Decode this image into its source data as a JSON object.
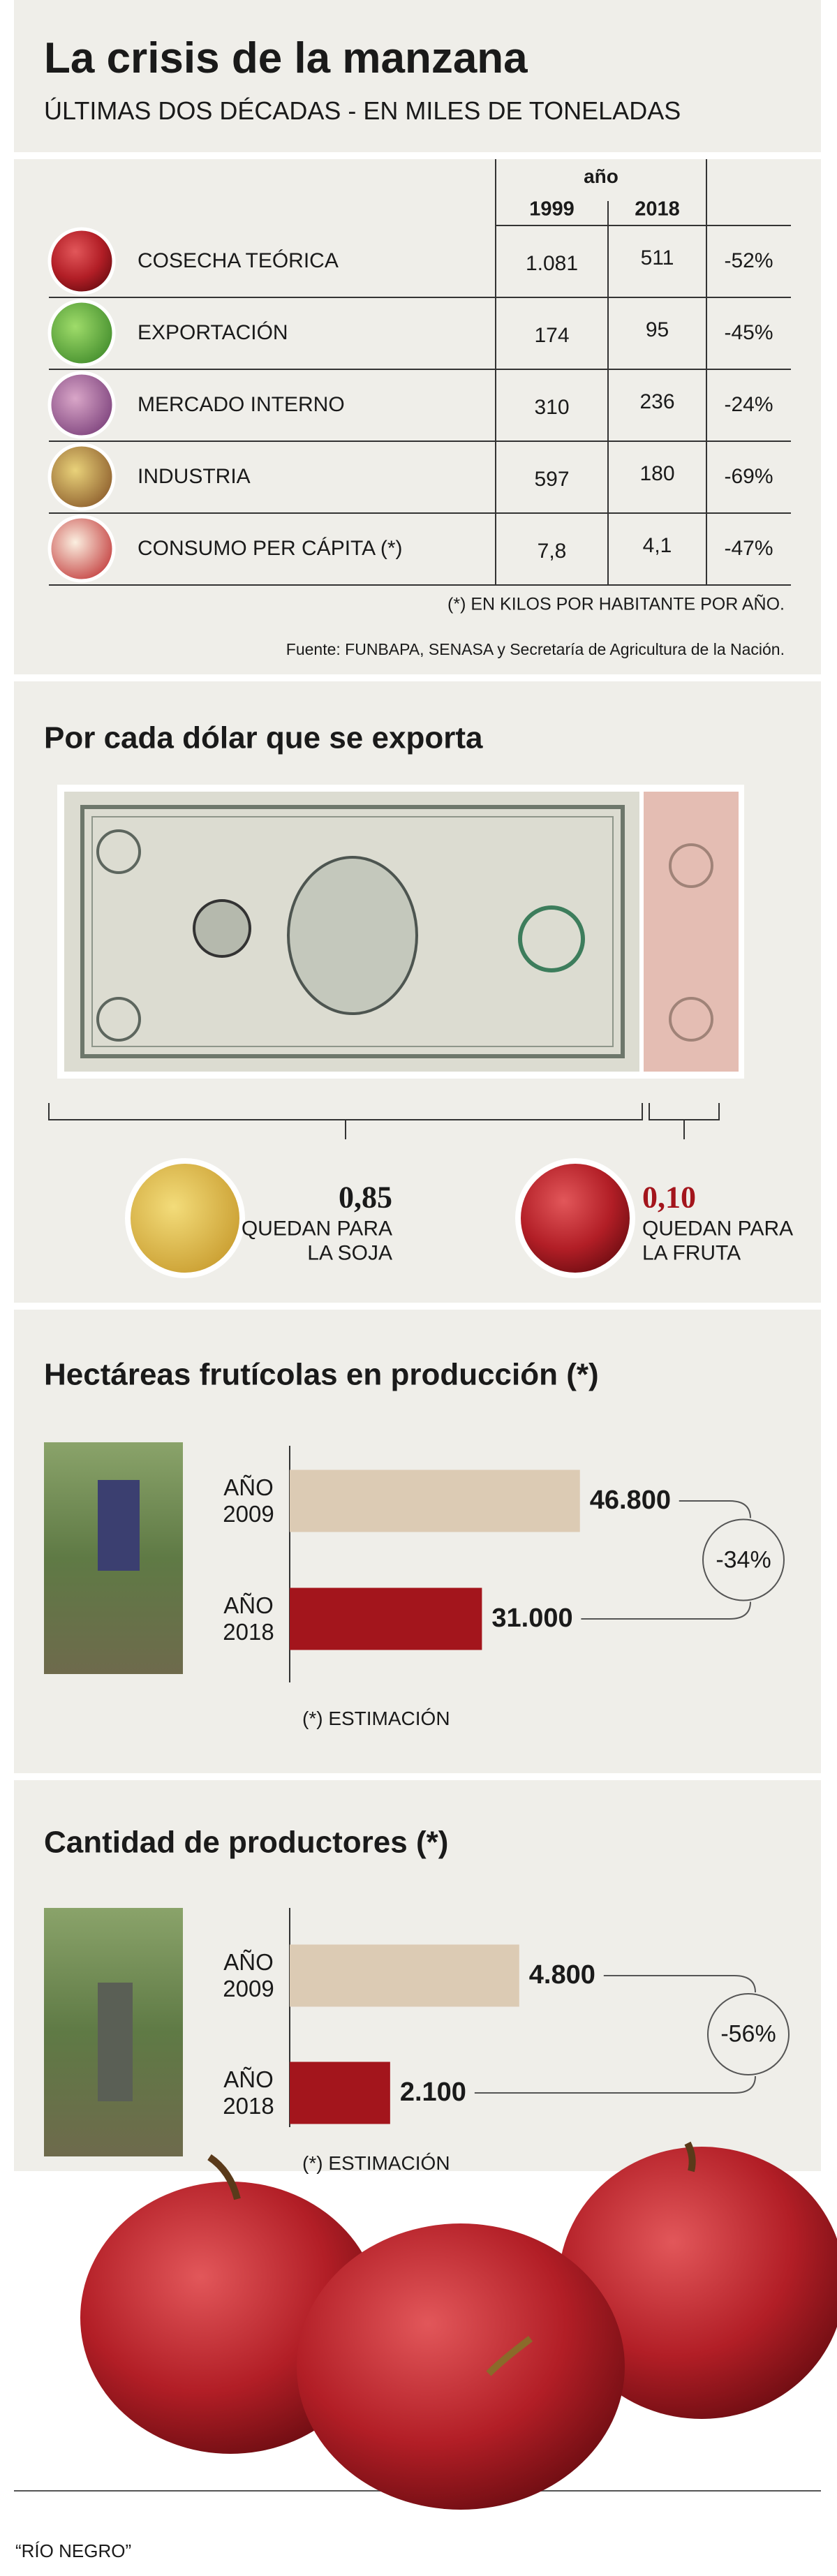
{
  "header": {
    "title": "La crisis de la manzana",
    "subtitle": "ÚLTIMAS DOS DÉCADAS - EN MILES DE TONELADAS"
  },
  "table": {
    "group_header": "año",
    "columns": [
      "1999",
      "2018"
    ],
    "rows": [
      [
        "COSECHA TEÓRICA",
        "1.081",
        "511",
        "-52%"
      ],
      [
        "EXPORTACIÓN",
        "174",
        "95",
        "-45%"
      ],
      [
        "MERCADO INTERNO",
        "310",
        "236",
        "-24%"
      ],
      [
        "INDUSTRIA",
        "597",
        "180",
        "-69%"
      ],
      [
        "CONSUMO PER CÁPITA (*)",
        "7,8",
        "4,1",
        "-47%"
      ]
    ],
    "note": "(*) EN KILOS POR HABITANTE POR AÑO.",
    "source": "Fuente: FUNBAPA, SENASA y Secretaría de Agricultura de la Nación."
  },
  "chart_data": [
    {
      "type": "split",
      "title": "Por cada dólar que se exporta",
      "categories": [
        "QUEDAN PARA\nLA SOJA",
        "QUEDAN PARA\nLA FRUTA"
      ],
      "values": [
        0.85,
        0.1
      ],
      "value_labels": [
        "0,85",
        "0,10"
      ],
      "colors": [
        "#1a1a1a",
        "#a3151c"
      ]
    },
    {
      "type": "hbar",
      "title": "Hectáreas frutícolas en producción (*)",
      "categories": [
        "AÑO\n2009",
        "AÑO\n2018"
      ],
      "values": [
        46800,
        31000
      ],
      "value_labels": [
        "46.800",
        "31.000"
      ],
      "colors": [
        "#dccbb4",
        "#a3151c"
      ],
      "xlim": [
        0,
        60000
      ],
      "annotation": "-34%",
      "note": "(*) ESTIMACIÓN"
    },
    {
      "type": "hbar",
      "title": "Cantidad de productores (*)",
      "categories": [
        "AÑO\n2009",
        "AÑO\n2018"
      ],
      "values": [
        4800,
        2100
      ],
      "value_labels": [
        "4.800",
        "2.100"
      ],
      "colors": [
        "#dccbb4",
        "#a3151c"
      ],
      "xlim": [
        0,
        6000
      ],
      "annotation": "-56%",
      "note": "(*) ESTIMACIÓN"
    }
  ],
  "footer": {
    "credit": "“RÍO NEGRO”"
  }
}
